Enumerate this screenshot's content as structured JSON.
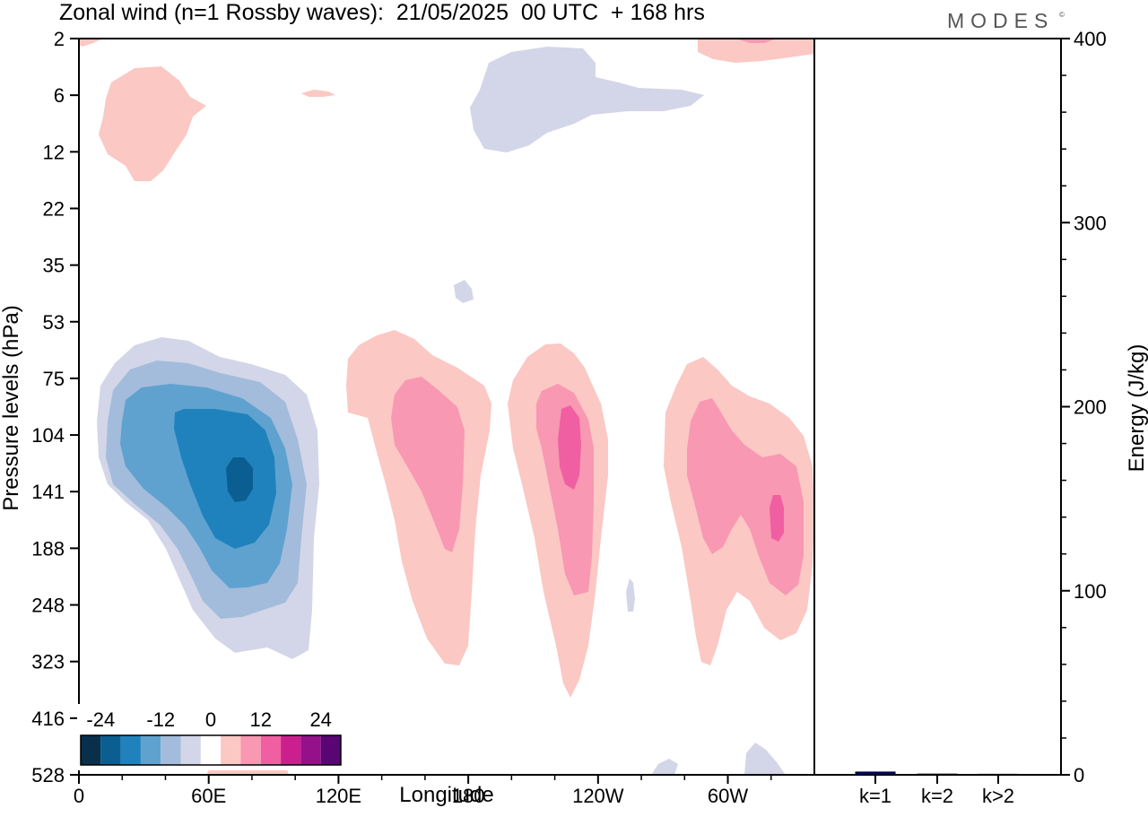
{
  "header": {
    "title": "Zonal wind (n=1 Rossby waves):  21/05/2025  00 UTC  + 168 hrs",
    "brand": "MODES",
    "brand_mark": "©"
  },
  "chart_data": [
    {
      "type": "heatmap",
      "title": "Zonal wind (n=1 Rossby waves):  21/05/2025  00 UTC  + 168 hrs",
      "xlabel": "Longitude",
      "ylabel": "Pressure levels (hPa)",
      "x_ticks": [
        "0",
        "60E",
        "120E",
        "180",
        "120W",
        "60W"
      ],
      "x_tick_degrees": [
        0,
        60,
        120,
        180,
        240,
        300
      ],
      "xlim": [
        0,
        340
      ],
      "y_ticks": [
        "2",
        "6",
        "12",
        "22",
        "35",
        "53",
        "75",
        "104",
        "141",
        "188",
        "248",
        "323",
        "416",
        "528"
      ],
      "y_scale": "log",
      "y_inverted": true,
      "colorbar": {
        "tick_labels": [
          "-24",
          "-12",
          "0",
          "12",
          "24"
        ],
        "levels": [
          -28,
          -24,
          -20,
          -16,
          -12,
          -8,
          -4,
          4,
          8,
          12,
          16,
          20,
          24,
          28
        ],
        "colors": [
          "#08304d",
          "#0b5e91",
          "#1f82bd",
          "#60a2cf",
          "#a3bcdb",
          "#d3d6e8",
          "#ffffff",
          "#fbc8c4",
          "#f898b2",
          "#ef5fa2",
          "#cc1f8e",
          "#95118a",
          "#5a0574"
        ],
        "placement": "bottom-left"
      },
      "features": [
        {
          "sign": "negative",
          "peak": -24,
          "lon": 74,
          "hPa": 130
        },
        {
          "sign": "positive",
          "peak": 12,
          "lon": 168,
          "hPa": 115
        },
        {
          "sign": "positive",
          "peak": 16,
          "lon": 238,
          "hPa": 115
        },
        {
          "sign": "positive",
          "peak": 16,
          "lon": 323,
          "hPa": 150
        }
      ]
    },
    {
      "type": "bar",
      "ylabel": "Energy (J/kg)",
      "ylim": [
        0,
        400
      ],
      "y_ticks": [
        "0",
        "100",
        "200",
        "300",
        "400"
      ],
      "categories": [
        "k=1",
        "k=2",
        "k>2"
      ],
      "values": [
        1.5,
        0.4,
        0.3
      ],
      "bar_color": "#000080"
    }
  ]
}
